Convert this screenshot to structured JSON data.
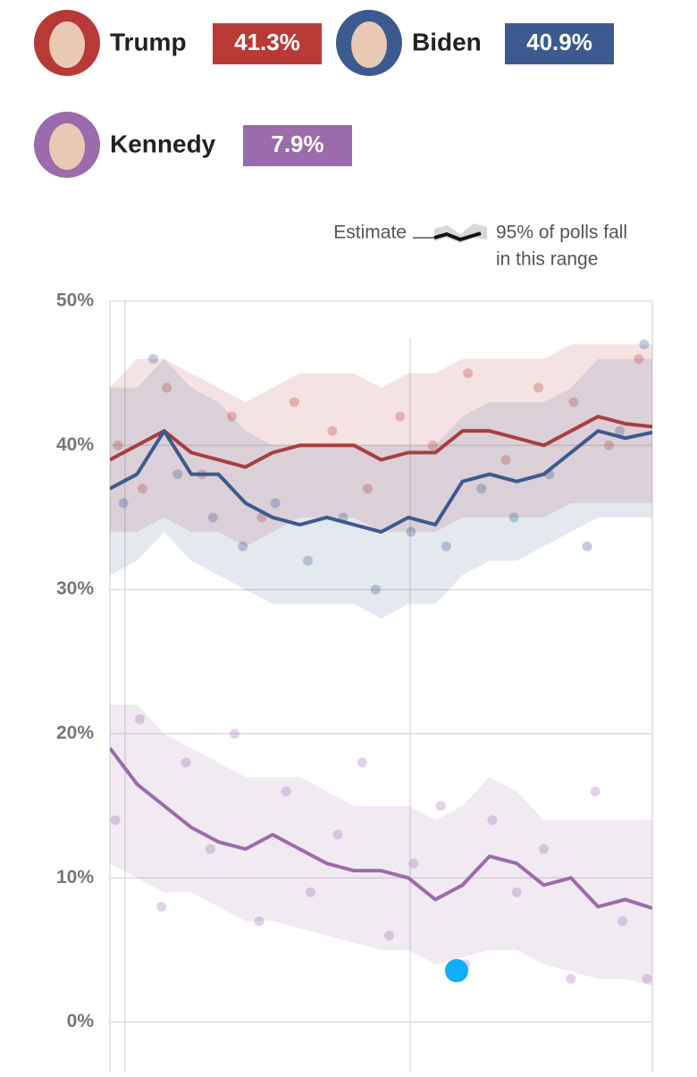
{
  "chart_data": {
    "type": "line",
    "legend_estimate": "Estimate",
    "legend_range": [
      "95% of polls fall",
      "in this range"
    ],
    "ylim": [
      -3.5,
      50
    ],
    "yticks": [
      {
        "value": 0,
        "label": "0%"
      },
      {
        "value": 10,
        "label": "10%"
      },
      {
        "value": 20,
        "label": "20%"
      },
      {
        "value": 30,
        "label": "30%"
      },
      {
        "value": 40,
        "label": "40%"
      },
      {
        "value": 50,
        "label": "50%"
      }
    ],
    "grid": true,
    "series": [
      {
        "name": "Trump",
        "color": "#b83a37",
        "latest_label": "41.3%",
        "values": [
          39,
          40,
          41,
          39.5,
          39,
          38.5,
          39.5,
          40,
          40,
          40,
          39,
          39.5,
          39.5,
          41,
          41,
          40.5,
          40,
          41,
          42,
          41.5,
          41.3
        ],
        "high": [
          44,
          46,
          46,
          45,
          44,
          43,
          44,
          45,
          45,
          45,
          44,
          45,
          45,
          46,
          46,
          46,
          46,
          47,
          47,
          47,
          47
        ],
        "low": [
          34,
          34,
          35,
          34,
          34,
          33,
          34,
          35,
          35,
          35,
          34,
          34,
          34,
          35,
          35,
          35,
          35,
          36,
          36,
          36,
          36
        ],
        "polls": {
          "x": [
            0.3,
            1.2,
            2.1,
            3.4,
            4.5,
            5.6,
            6.8,
            8.2,
            9.5,
            10.7,
            11.9,
            13.2,
            14.6,
            15.8,
            17.1,
            18.4,
            19.5
          ],
          "values": [
            40,
            37,
            44,
            38,
            42,
            35,
            43,
            41,
            37,
            42,
            40,
            45,
            39,
            44,
            43,
            40,
            46
          ]
        }
      },
      {
        "name": "Biden",
        "color": "#3d5a8f",
        "latest_label": "40.9%",
        "values": [
          37,
          38,
          41,
          38,
          38,
          36,
          35,
          34.5,
          35,
          34.5,
          34,
          35,
          34.5,
          37.5,
          38,
          37.5,
          38,
          39.5,
          41,
          40.5,
          40.9
        ],
        "high": [
          44,
          44,
          46,
          44,
          43,
          41,
          40,
          40,
          40,
          40,
          40,
          40,
          40,
          42,
          43,
          43,
          43,
          44,
          46,
          46,
          46
        ],
        "low": [
          31,
          32,
          34,
          32,
          31,
          30,
          29,
          29,
          29,
          29,
          28,
          29,
          29,
          31,
          32,
          32,
          33,
          34,
          35,
          35,
          35
        ],
        "polls": {
          "x": [
            0.5,
            1.6,
            2.5,
            3.8,
            4.9,
            6.1,
            7.3,
            8.6,
            9.8,
            11.1,
            12.4,
            13.7,
            14.9,
            16.2,
            17.6,
            18.8,
            19.7
          ],
          "values": [
            36,
            46,
            38,
            35,
            33,
            36,
            32,
            35,
            30,
            34,
            33,
            37,
            35,
            38,
            33,
            41,
            47
          ]
        }
      },
      {
        "name": "Kennedy",
        "color": "#9b6bab",
        "latest_label": "7.9%",
        "values": [
          19,
          16.5,
          15,
          13.5,
          12.5,
          12,
          13,
          12,
          11,
          10.5,
          10.5,
          10,
          8.5,
          9.5,
          11.5,
          11,
          9.5,
          10,
          8,
          8.5,
          7.9
        ],
        "high": [
          22,
          22,
          20,
          19,
          18,
          17,
          17,
          17,
          16,
          15,
          15,
          15,
          14,
          15,
          17,
          16,
          14,
          14,
          14,
          14,
          14
        ],
        "low": [
          11,
          10,
          9,
          9,
          8,
          7,
          7,
          6.5,
          6,
          5.5,
          5,
          5,
          4,
          4.5,
          5,
          5,
          4,
          3.5,
          3,
          3,
          2.5
        ],
        "polls": {
          "x": [
            0.2,
            1.1,
            1.9,
            2.8,
            3.7,
            4.6,
            5.5,
            6.5,
            7.4,
            8.4,
            9.3,
            10.3,
            11.2,
            12.2,
            13.1,
            14.1,
            15.0,
            16.0,
            17.0,
            17.9,
            18.9,
            19.8
          ],
          "values": [
            14,
            21,
            8,
            18,
            12,
            20,
            7,
            16,
            9,
            13,
            18,
            6,
            11,
            15,
            4,
            14,
            9,
            12,
            3,
            16,
            7,
            3
          ]
        }
      }
    ]
  }
}
